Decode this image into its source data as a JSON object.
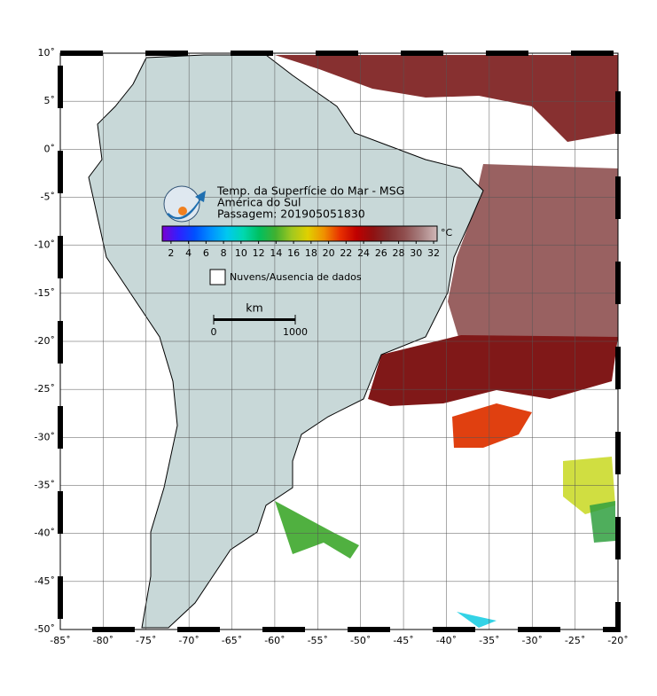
{
  "map": {
    "title": "Temp. da Superfície do Mar - MSG",
    "subtitle": "América do Sul",
    "pass": "Passagem: 201905051830",
    "xlim": [
      -85,
      -20
    ],
    "ylim": [
      -50,
      10
    ],
    "xticks": [
      {
        "value": -85,
        "label": "-85˚"
      },
      {
        "value": -80,
        "label": "-80˚"
      },
      {
        "value": -75,
        "label": "-75˚"
      },
      {
        "value": -70,
        "label": "-70˚"
      },
      {
        "value": -65,
        "label": "-65˚"
      },
      {
        "value": -60,
        "label": "-60˚"
      },
      {
        "value": -55,
        "label": "-55˚"
      },
      {
        "value": -50,
        "label": "-50˚"
      },
      {
        "value": -45,
        "label": "-45˚"
      },
      {
        "value": -40,
        "label": "-40˚"
      },
      {
        "value": -35,
        "label": "-35˚"
      },
      {
        "value": -30,
        "label": "-30˚"
      },
      {
        "value": -25,
        "label": "-25˚"
      },
      {
        "value": -20,
        "label": "-20˚"
      }
    ],
    "yticks": [
      {
        "value": 10,
        "label": "10˚"
      },
      {
        "value": 5,
        "label": "5˚"
      },
      {
        "value": 0,
        "label": "0˚"
      },
      {
        "value": -5,
        "label": "-5˚"
      },
      {
        "value": -10,
        "label": "-10˚"
      },
      {
        "value": -15,
        "label": "-15˚"
      },
      {
        "value": -20,
        "label": "-20˚"
      },
      {
        "value": -25,
        "label": "-25˚"
      },
      {
        "value": -30,
        "label": "-30˚"
      },
      {
        "value": -35,
        "label": "-35˚"
      },
      {
        "value": -40,
        "label": "-40˚"
      },
      {
        "value": -45,
        "label": "-45˚"
      },
      {
        "value": -50,
        "label": "-50˚"
      }
    ],
    "grid": true,
    "colorbar": {
      "clim": [
        1,
        32.4
      ],
      "ticks": [
        2,
        4,
        6,
        8,
        10,
        12,
        14,
        16,
        18,
        20,
        22,
        24,
        26,
        28,
        30,
        32
      ],
      "unit": "°C",
      "colors": [
        "#7a00d0",
        "#3020ff",
        "#0050ff",
        "#0090ff",
        "#00c8f0",
        "#00d8b0",
        "#00c060",
        "#40b030",
        "#a0c820",
        "#e0d000",
        "#f09000",
        "#e83000",
        "#c00000",
        "#901010",
        "#803030",
        "#905050",
        "#a88080",
        "#d0b8b8"
      ]
    },
    "legend": {
      "label": "Nuvens/Ausencia de dados"
    },
    "scale_bar": {
      "unit": "km",
      "ticks": [
        0,
        1000
      ]
    }
  }
}
